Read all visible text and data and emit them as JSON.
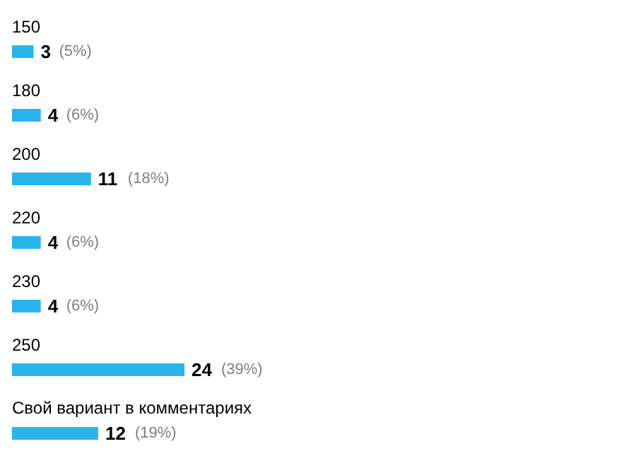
{
  "chart_data": {
    "type": "bar",
    "orientation": "horizontal",
    "categories": [
      "150",
      "180",
      "200",
      "220",
      "230",
      "250",
      "Свой вариант в комментариях"
    ],
    "values": [
      3,
      4,
      11,
      4,
      4,
      24,
      12
    ],
    "value_labels": [
      "3 (5%)",
      "4 (6%)",
      "11 (18%)",
      "4 (6%)",
      "4 (6%)",
      "24 (39%)",
      "12 (19%)"
    ],
    "color": "#2ab4ec"
  }
}
